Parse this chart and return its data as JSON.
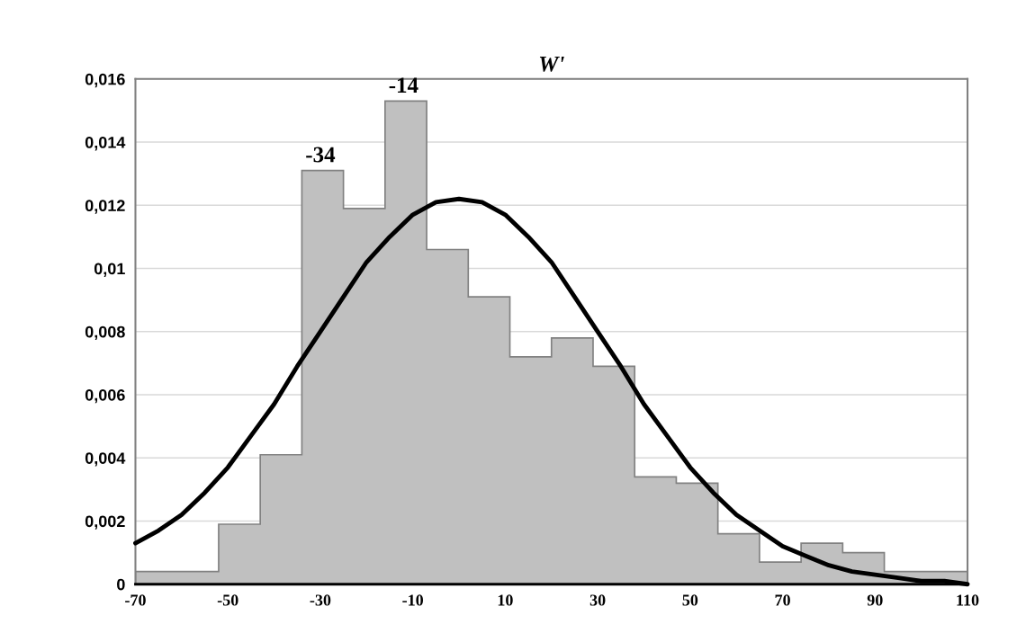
{
  "chart_data": {
    "type": "histogram",
    "title": "W'",
    "series": [
      {
        "type": "histogram",
        "color": "#c0c0c0",
        "bins": [
          -70,
          -52,
          -43,
          -34,
          -25,
          -16,
          -7,
          2,
          11,
          20,
          29,
          38,
          47,
          56,
          65,
          74,
          83,
          92,
          110
        ],
        "values": [
          0.0004,
          0.0019,
          0.0041,
          0.0131,
          0.0119,
          0.0153,
          0.0106,
          0.0091,
          0.0072,
          0.0078,
          0.0069,
          0.0034,
          0.0032,
          0.0016,
          0.0007,
          0.0013,
          0.001,
          0.0004
        ]
      },
      {
        "type": "line",
        "color": "#000000",
        "x": [
          -70,
          -65,
          -60,
          -55,
          -50,
          -45,
          -40,
          -35,
          -30,
          -25,
          -20,
          -15,
          -10,
          -5,
          0,
          5,
          10,
          15,
          20,
          25,
          30,
          35,
          40,
          45,
          50,
          55,
          60,
          65,
          70,
          75,
          80,
          85,
          90,
          95,
          100,
          105,
          110
        ],
        "values": [
          0.0013,
          0.0017,
          0.0022,
          0.0029,
          0.0037,
          0.0047,
          0.0057,
          0.0069,
          0.008,
          0.0091,
          0.0102,
          0.011,
          0.0117,
          0.0121,
          0.0122,
          0.0121,
          0.0117,
          0.011,
          0.0102,
          0.0091,
          0.008,
          0.0069,
          0.0057,
          0.0047,
          0.0037,
          0.0029,
          0.0022,
          0.0017,
          0.0012,
          0.0009,
          0.0006,
          0.0004,
          0.0003,
          0.0002,
          0.0001,
          0.0001,
          0.0
        ]
      }
    ],
    "xlim": [
      -70,
      110
    ],
    "xticks": [
      -70,
      -50,
      -30,
      -10,
      10,
      30,
      50,
      70,
      90,
      110
    ],
    "ylim": [
      0,
      0.016
    ],
    "yticks": [
      {
        "value": 0,
        "label": "0"
      },
      {
        "value": 0.002,
        "label": "0,002"
      },
      {
        "value": 0.004,
        "label": "0,004"
      },
      {
        "value": 0.006,
        "label": "0,006"
      },
      {
        "value": 0.008,
        "label": "0,008"
      },
      {
        "value": 0.01,
        "label": "0,01"
      },
      {
        "value": 0.012,
        "label": "0,012"
      },
      {
        "value": 0.014,
        "label": "0,014"
      },
      {
        "value": 0.016,
        "label": "0,016"
      }
    ],
    "grid": "y",
    "legend": false,
    "annotations": [
      {
        "text": "-34",
        "x": -30,
        "y": 0.0131
      },
      {
        "text": "-14",
        "x": -12,
        "y": 0.0153
      }
    ]
  }
}
